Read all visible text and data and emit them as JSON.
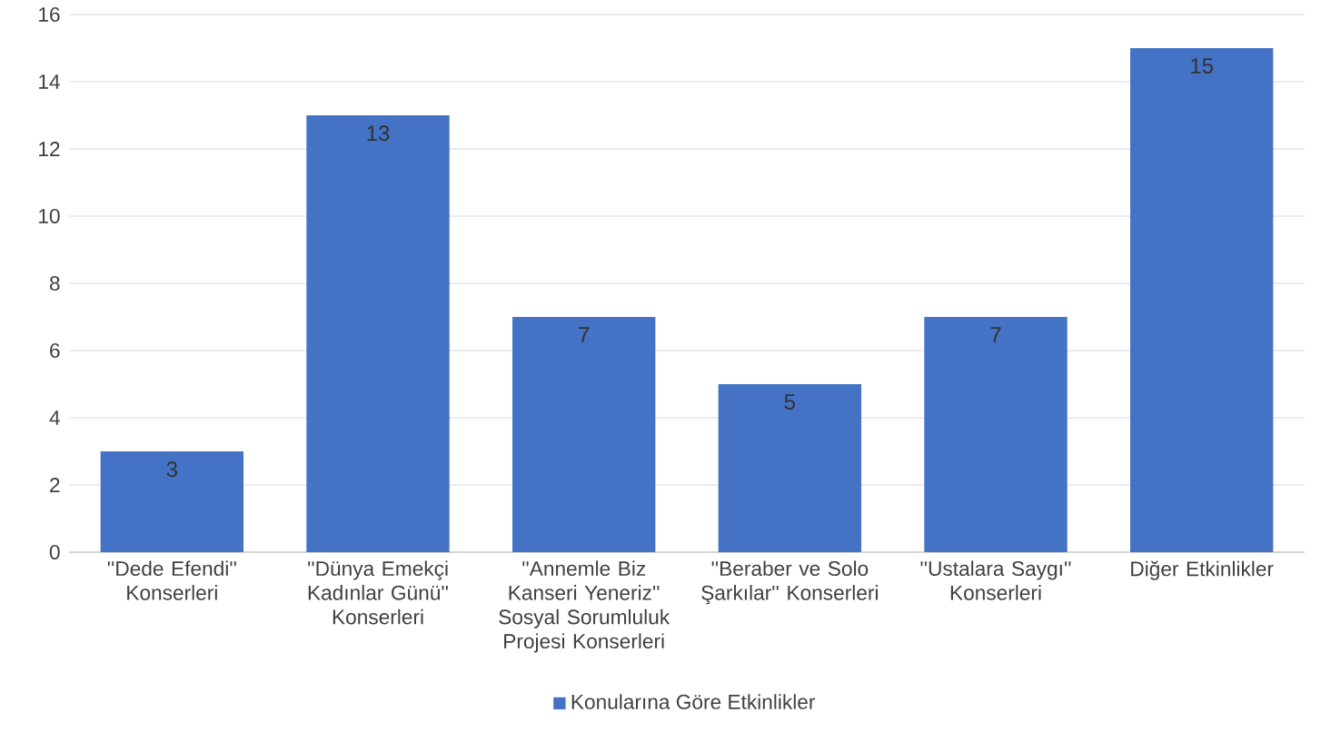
{
  "chart_data": {
    "type": "bar",
    "categories": [
      "''Dede Efendi'' Konserleri",
      "''Dünya Emekçi Kadınlar Günü'' Konserleri",
      "''Annemle Biz Kanseri Yeneriz'' Sosyal Sorumluluk Projesi Konserleri",
      "''Beraber ve Solo Şarkılar'' Konserleri",
      "''Ustalara Saygı'' Konserleri",
      "Diğer Etkinlikler"
    ],
    "series": [
      {
        "name": "Konularına Göre Etkinlikler",
        "color": "#4472c4",
        "values": [
          3,
          13,
          7,
          5,
          7,
          15
        ]
      }
    ],
    "ylim": [
      0,
      16
    ],
    "yticks": [
      0,
      2,
      4,
      6,
      8,
      10,
      12,
      14,
      16
    ],
    "grid": "y",
    "legend": "bottom",
    "data_labels": true
  }
}
